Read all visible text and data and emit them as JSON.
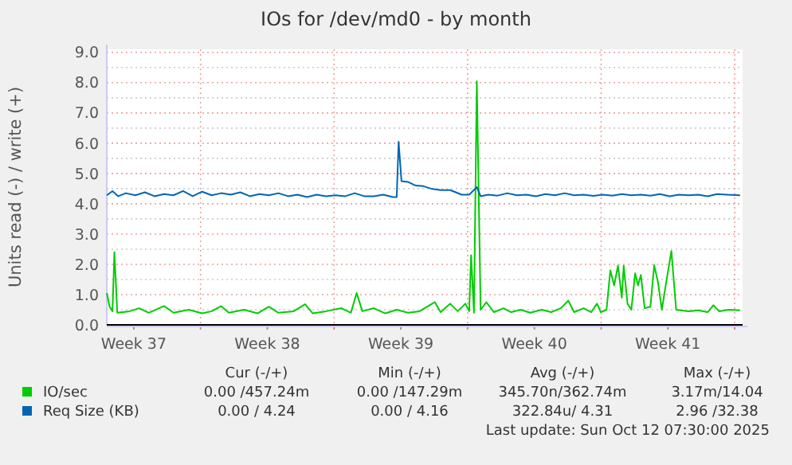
{
  "chart_data": {
    "type": "line",
    "title": "IOs for /dev/md0 - by month",
    "ylabel": "Units read (-) / write (+)",
    "xlim": [
      "2025-09-10T02:00",
      "2025-10-13T10:00"
    ],
    "ylim": [
      0,
      9.1
    ],
    "xticks": [
      {
        "value": "2025-09-11T12:00",
        "label": "Week 37"
      },
      {
        "value": "2025-09-15",
        "label": null
      },
      {
        "value": "2025-09-18T12:00",
        "label": "Week 38"
      },
      {
        "value": "2025-09-22",
        "label": null
      },
      {
        "value": "2025-09-25T12:00",
        "label": "Week 39"
      },
      {
        "value": "2025-09-29",
        "label": null
      },
      {
        "value": "2025-10-02T12:00",
        "label": "Week 40"
      },
      {
        "value": "2025-10-06",
        "label": null
      },
      {
        "value": "2025-10-09T12:00",
        "label": "Week 41"
      },
      {
        "value": "2025-10-13",
        "label": null
      }
    ],
    "yticks": [
      {
        "value": 0,
        "label": "0.0"
      },
      {
        "value": 0.5,
        "label": null
      },
      {
        "value": 1,
        "label": "1.0"
      },
      {
        "value": 1.5,
        "label": null
      },
      {
        "value": 2,
        "label": "2.0"
      },
      {
        "value": 2.5,
        "label": null
      },
      {
        "value": 3,
        "label": "3.0"
      },
      {
        "value": 3.5,
        "label": null
      },
      {
        "value": 4,
        "label": "4.0"
      },
      {
        "value": 4.5,
        "label": null
      },
      {
        "value": 5,
        "label": "5.0"
      },
      {
        "value": 5.5,
        "label": null
      },
      {
        "value": 6,
        "label": "6.0"
      },
      {
        "value": 6.5,
        "label": null
      },
      {
        "value": 7,
        "label": "7.0"
      },
      {
        "value": 7.5,
        "label": null
      },
      {
        "value": 8,
        "label": "8.0"
      },
      {
        "value": 8.5,
        "label": null
      },
      {
        "value": 9,
        "label": "9.0"
      }
    ],
    "grid": true,
    "legend": "bottom",
    "series": [
      {
        "name": "IO/sec",
        "color": "#00cc00",
        "x": [
          "2025-09-10T02:00",
          "2025-09-10T05:36",
          "2025-09-10T09:12",
          "2025-09-10T11:36",
          "2025-09-10T15:12",
          "2025-09-11T06:48",
          "2025-09-11T18:48",
          "2025-09-12T06:48",
          "2025-09-13T02:00",
          "2025-09-13T14:00",
          "2025-09-14T09:12",
          "2025-09-15T02:00",
          "2025-09-15T14:00",
          "2025-09-16T02:00",
          "2025-09-16T11:36",
          "2025-09-17T06:48",
          "2025-09-17T23:36",
          "2025-09-18T14:00",
          "2025-09-19T02:00",
          "2025-09-19T21:12",
          "2025-09-20T11:36",
          "2025-09-20T21:12",
          "2025-09-21T14:00",
          "2025-09-22T09:12",
          "2025-09-22T21:12",
          "2025-09-23T04:24",
          "2025-09-23T11:36",
          "2025-09-24T02:00",
          "2025-09-24T16:24",
          "2025-09-25T06:48",
          "2025-09-25T21:12",
          "2025-09-26T11:36",
          "2025-09-27T06:48",
          "2025-09-27T14:00",
          "2025-09-28T02:00",
          "2025-09-28T11:36",
          "2025-09-28T21:12",
          "2025-09-29T02:00",
          "2025-09-29T04:24",
          "2025-09-29T08:00",
          "2025-09-29T11:36",
          "2025-09-29T16:24",
          "2025-09-29T23:36",
          "2025-09-30T09:12",
          "2025-09-30T21:12",
          "2025-10-01T06:48",
          "2025-10-01T18:48",
          "2025-10-02T06:48",
          "2025-10-02T21:12",
          "2025-10-03T09:12",
          "2025-10-03T21:12",
          "2025-10-04T06:48",
          "2025-10-04T14:00",
          "2025-10-05T02:00",
          "2025-10-05T11:36",
          "2025-10-05T18:48",
          "2025-10-05T23:36",
          "2025-10-06T06:48",
          "2025-10-06T11:36",
          "2025-10-06T16:24",
          "2025-10-06T21:12",
          "2025-10-07T02:00",
          "2025-10-07T04:24",
          "2025-10-07T09:12",
          "2025-10-07T14:00",
          "2025-10-07T18:48",
          "2025-10-07T22:24",
          "2025-10-08T02:00",
          "2025-10-08T06:48",
          "2025-10-08T14:00",
          "2025-10-08T18:48",
          "2025-10-08T23:36",
          "2025-10-09T04:24",
          "2025-10-09T09:12",
          "2025-10-09T16:24",
          "2025-10-09T22:24",
          "2025-10-10T14:00",
          "2025-10-11T02:00",
          "2025-10-11T14:00",
          "2025-10-11T21:12",
          "2025-10-12T04:24",
          "2025-10-12T16:24",
          "2025-10-13T06:48"
        ],
        "values": [
          1.05,
          0.6,
          0.45,
          2.4,
          0.4,
          0.45,
          0.55,
          0.4,
          0.62,
          0.4,
          0.5,
          0.38,
          0.45,
          0.62,
          0.4,
          0.5,
          0.38,
          0.6,
          0.4,
          0.45,
          0.68,
          0.38,
          0.45,
          0.55,
          0.4,
          1.05,
          0.45,
          0.55,
          0.38,
          0.5,
          0.4,
          0.45,
          0.75,
          0.42,
          0.7,
          0.45,
          0.7,
          0.45,
          2.3,
          0.4,
          8.05,
          0.5,
          0.75,
          0.42,
          0.55,
          0.42,
          0.5,
          0.4,
          0.5,
          0.42,
          0.55,
          0.8,
          0.42,
          0.55,
          0.42,
          0.7,
          0.42,
          0.5,
          1.8,
          1.3,
          1.96,
          0.9,
          1.95,
          0.7,
          0.5,
          1.7,
          1.3,
          1.65,
          0.55,
          0.6,
          1.97,
          1.4,
          0.5,
          1.3,
          2.44,
          0.5,
          0.45,
          0.48,
          0.42,
          0.65,
          0.45,
          0.5,
          0.48
        ]
      },
      {
        "name": "Req Size (KB)",
        "color": "#0066b3",
        "x": [
          "2025-09-10T02:00",
          "2025-09-10T09:12",
          "2025-09-10T16:24",
          "2025-09-11T02:00",
          "2025-09-11T14:00",
          "2025-09-12T02:00",
          "2025-09-12T14:00",
          "2025-09-13T02:00",
          "2025-09-13T14:00",
          "2025-09-14T02:00",
          "2025-09-14T14:00",
          "2025-09-15T02:00",
          "2025-09-15T14:00",
          "2025-09-16T02:00",
          "2025-09-16T14:00",
          "2025-09-17T02:00",
          "2025-09-17T14:00",
          "2025-09-18T02:00",
          "2025-09-18T14:00",
          "2025-09-19T02:00",
          "2025-09-19T14:00",
          "2025-09-20T02:00",
          "2025-09-20T14:00",
          "2025-09-21T02:00",
          "2025-09-21T14:00",
          "2025-09-22T02:00",
          "2025-09-22T14:00",
          "2025-09-23T02:00",
          "2025-09-23T14:00",
          "2025-09-24T02:00",
          "2025-09-24T14:00",
          "2025-09-25T02:00",
          "2025-09-25T06:48",
          "2025-09-25T09:12",
          "2025-09-25T12:48",
          "2025-09-25T21:12",
          "2025-09-26T06:48",
          "2025-09-26T16:24",
          "2025-09-27T02:00",
          "2025-09-27T14:00",
          "2025-09-28T02:00",
          "2025-09-28T09:12",
          "2025-09-28T16:24",
          "2025-09-29T02:00",
          "2025-09-29T11:36",
          "2025-09-29T16:24",
          "2025-09-30T02:00",
          "2025-09-30T14:00",
          "2025-10-01T02:00",
          "2025-10-01T14:00",
          "2025-10-02T02:00",
          "2025-10-02T14:00",
          "2025-10-03T02:00",
          "2025-10-03T14:00",
          "2025-10-04T02:00",
          "2025-10-04T14:00",
          "2025-10-05T02:00",
          "2025-10-05T14:00",
          "2025-10-06T02:00",
          "2025-10-06T14:00",
          "2025-10-07T02:00",
          "2025-10-07T14:00",
          "2025-10-08T02:00",
          "2025-10-08T14:00",
          "2025-10-09T02:00",
          "2025-10-09T14:00",
          "2025-10-10T02:00",
          "2025-10-10T14:00",
          "2025-10-11T02:00",
          "2025-10-11T14:00",
          "2025-10-12T02:00",
          "2025-10-12T14:00",
          "2025-10-13T06:48"
        ],
        "values": [
          4.28,
          4.42,
          4.25,
          4.35,
          4.28,
          4.38,
          4.25,
          4.32,
          4.28,
          4.42,
          4.25,
          4.4,
          4.28,
          4.35,
          4.3,
          4.38,
          4.25,
          4.32,
          4.28,
          4.35,
          4.25,
          4.3,
          4.22,
          4.3,
          4.25,
          4.28,
          4.25,
          4.35,
          4.25,
          4.25,
          4.3,
          4.22,
          4.22,
          6.05,
          4.75,
          4.72,
          4.6,
          4.58,
          4.5,
          4.45,
          4.45,
          4.38,
          4.3,
          4.3,
          4.55,
          4.25,
          4.3,
          4.27,
          4.35,
          4.28,
          4.3,
          4.25,
          4.32,
          4.28,
          4.35,
          4.28,
          4.3,
          4.26,
          4.3,
          4.27,
          4.32,
          4.28,
          4.3,
          4.27,
          4.32,
          4.25,
          4.3,
          4.28,
          4.3,
          4.25,
          4.32,
          4.3,
          4.28
        ]
      }
    ],
    "annotations": [
      "Cur (-/+)",
      "Min (-/+)",
      "Avg (-/+)",
      "Max (-/+)",
      "0.00 /457.24m",
      "0.00 /147.29m",
      "345.70n/362.74m",
      "3.17m/14.04",
      "0.00 / 4.24",
      "0.00 / 4.16",
      "322.84u/ 4.31",
      "2.96 /32.38",
      "Last update: Sun Oct 12 07:30:00 2025"
    ]
  }
}
